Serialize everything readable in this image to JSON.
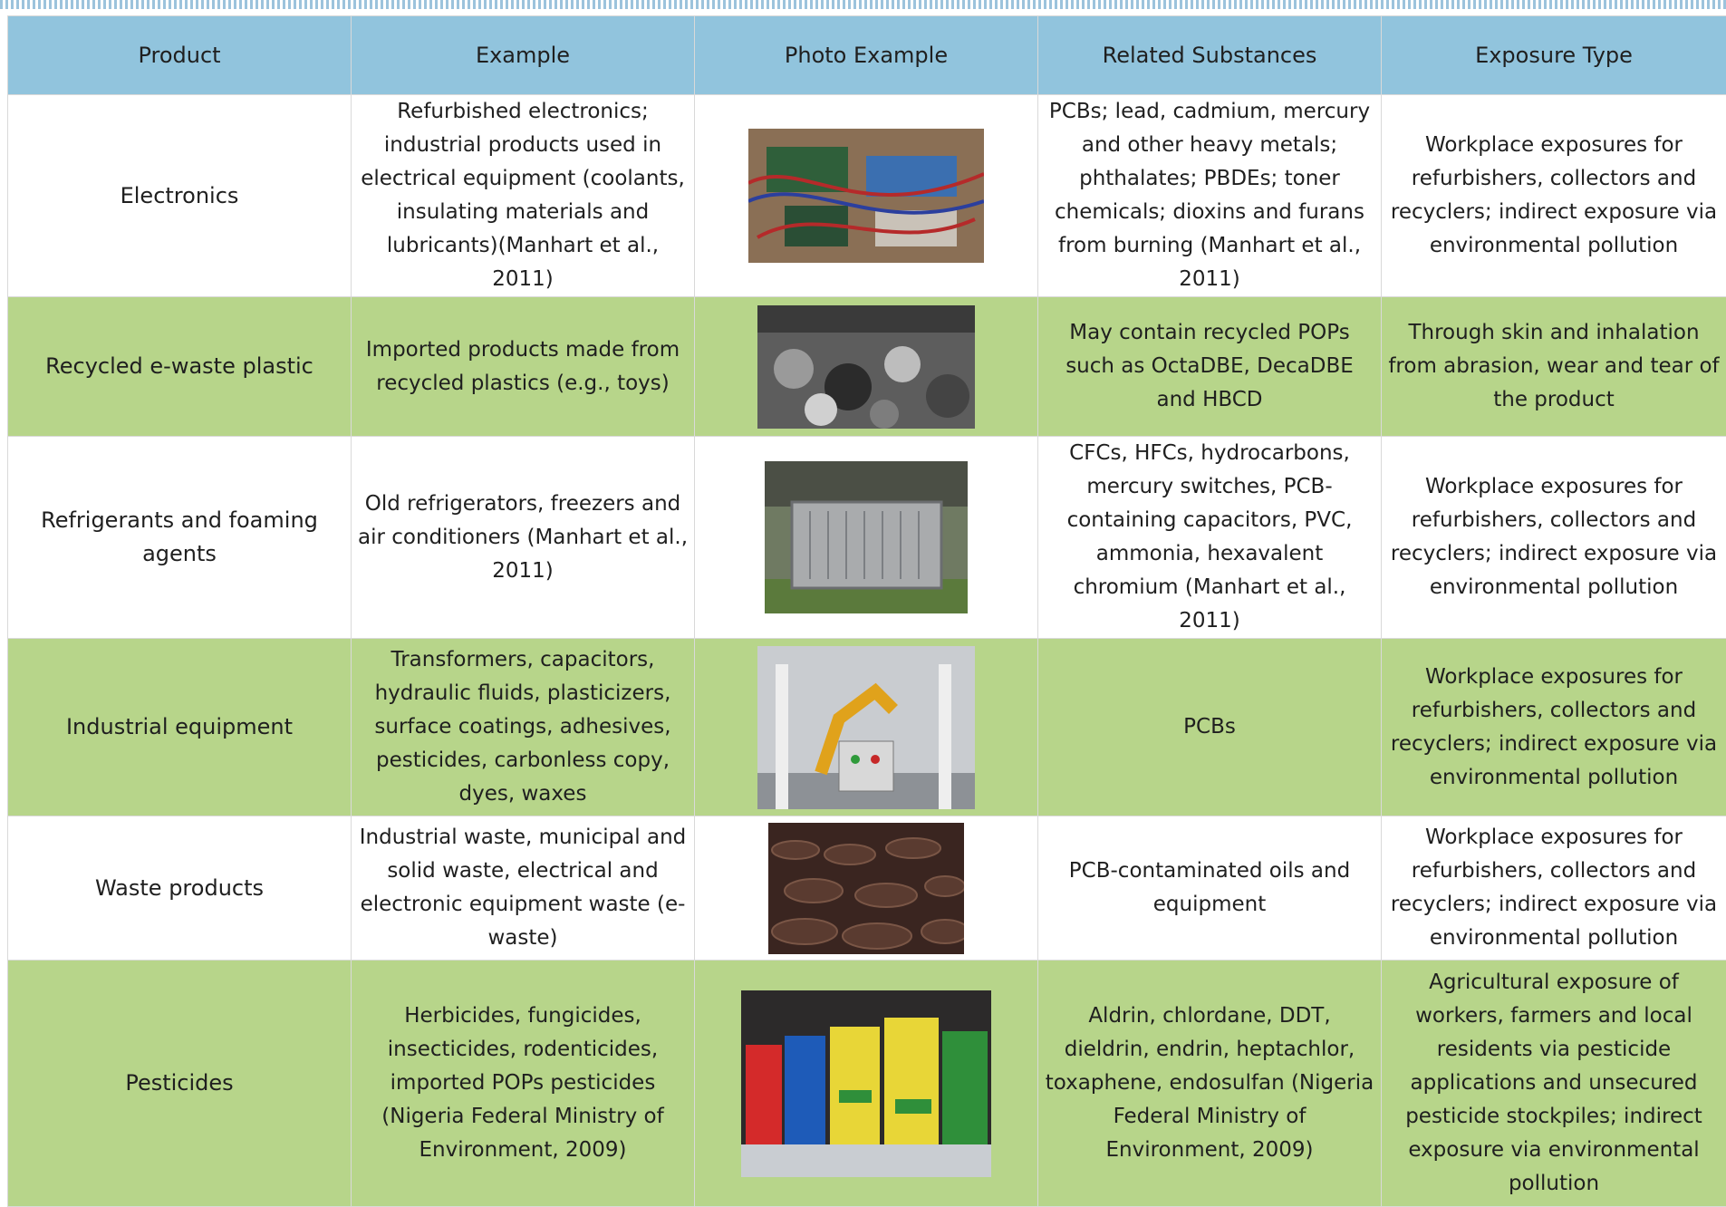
{
  "table": {
    "header": [
      "Product",
      "Example",
      "Photo Example",
      "Related Substances",
      "Exposure Type"
    ],
    "rows": [
      {
        "product": "Electronics",
        "example": "Refurbished electronics; industrial products used in electrical equipment (coolants, insulating materials and lubricants)(Manhart et al., 2011)",
        "substances": "PCBs; lead, cadmium, mercury and other heavy metals; phthalates; PBDEs; toner chemicals; dioxins and furans from burning (Manhart et al., 2011)",
        "exposure": "Workplace exposures for refurbishers, collectors and recyclers; indirect exposure via environmental pollution"
      },
      {
        "product": "Recycled e-waste plastic",
        "example": "Imported products made from recycled plastics (e.g., toys)",
        "substances": "May contain recycled POPs such as OctaDBE, DecaDBE and HBCD",
        "exposure": "Through skin and inhalation from abrasion, wear and tear of the product"
      },
      {
        "product": "Refrigerants and foaming agents",
        "example": "Old refrigerators, freezers and air conditioners (Manhart et al., 2011)",
        "substances": "CFCs, HFCs, hydrocarbons, mercury switches, PCB-containing capacitors, PVC, ammonia, hexavalent chromium (Manhart et al., 2011)",
        "exposure": "Workplace exposures for refurbishers, collectors and recyclers; indirect exposure via environmental pollution"
      },
      {
        "product": "Industrial equipment",
        "example": "Transformers, capacitors, hydraulic fluids, plasticizers, surface coatings, adhesives, pesticides, carbonless copy, dyes, waxes",
        "substances": "PCBs",
        "exposure": "Workplace exposures for refurbishers, collectors and recyclers; indirect exposure via environmental pollution"
      },
      {
        "product": "Waste products",
        "example": "Industrial waste, municipal and solid waste, electrical and electronic equipment waste (e-waste)",
        "substances": "PCB-contaminated oils and equipment",
        "exposure": "Workplace exposures for refurbishers, collectors and recyclers; indirect exposure via environmental pollution"
      },
      {
        "product": "Pesticides",
        "example": "Herbicides, fungicides, insecticides, rodenticides, imported POPs pesticides (Nigeria Federal Ministry of Environment, 2009)",
        "substances": "Aldrin, chlordane, DDT, dieldrin, endrin, heptachlor, toxaphene, endosulfan (Nigeria Federal Ministry of Environment, 2009)",
        "exposure": "Agricultural exposure of workers, farmers and local residents via pesticide applications and unsecured pesticide stockpiles; indirect exposure via environmental pollution"
      }
    ]
  }
}
